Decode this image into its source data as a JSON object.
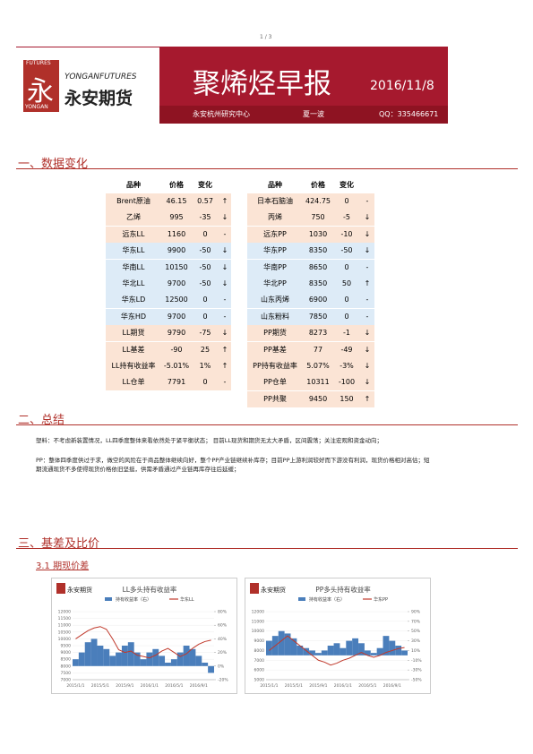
{
  "page_number": "1 / 3",
  "header": {
    "logo_small_top": "FUTURES",
    "logo_char": "永",
    "logo_en": "YONGANFUTURES",
    "logo_cn": "永安期货",
    "logo_small_bottom": "YONGAN",
    "title": "聚烯烃早报",
    "date": "2016/11/8",
    "org": "永安杭州研究中心",
    "author": "夏一波",
    "contact": "QQ：335466671"
  },
  "sections": [
    "一、数据变化",
    "二、总结",
    "三、基差及比价"
  ],
  "subsection": "3.1 期现价差",
  "table": {
    "header": [
      "品种",
      "价格",
      "变化"
    ],
    "left": [
      [
        "Brent原油",
        "46.15",
        "0.57",
        "↑"
      ],
      [
        "乙烯",
        "995",
        "-35",
        "↓"
      ],
      [
        "远东LL",
        "1160",
        "0",
        "-"
      ],
      [
        "华东LL",
        "9900",
        "-50",
        "↓"
      ],
      [
        "华南LL",
        "10150",
        "-50",
        "↓"
      ],
      [
        "华北LL",
        "9700",
        "-50",
        "↓"
      ],
      [
        "华东LD",
        "12500",
        "0",
        "-"
      ],
      [
        "华东HD",
        "9700",
        "0",
        "-"
      ],
      [
        "LL期货",
        "9790",
        "-75",
        "↓"
      ],
      [
        "LL基差",
        "-90",
        "25",
        "↑"
      ],
      [
        "LL持有收益率",
        "-5.01%",
        "1%",
        "↑"
      ],
      [
        "LL仓单",
        "7791",
        "0",
        "-"
      ]
    ],
    "right": [
      [
        "日本石脑油",
        "424.75",
        "0",
        "-"
      ],
      [
        "丙烯",
        "750",
        "-5",
        "↓"
      ],
      [
        "远东PP",
        "1030",
        "-10",
        "↓"
      ],
      [
        "华东PP",
        "8350",
        "-50",
        "↓"
      ],
      [
        "华南PP",
        "8650",
        "0",
        "-"
      ],
      [
        "华北PP",
        "8350",
        "50",
        "↑"
      ],
      [
        "山东丙烯",
        "6900",
        "0",
        "-"
      ],
      [
        "山东粉料",
        "7850",
        "0",
        "-"
      ],
      [
        "PP期货",
        "8273",
        "-1",
        "↓"
      ],
      [
        "PP基差",
        "77",
        "-49",
        "↓"
      ],
      [
        "PP持有收益率",
        "5.07%",
        "-3%",
        "↓"
      ],
      [
        "PP仓单",
        "10311",
        "-100",
        "↓"
      ],
      [
        "PP共聚",
        "9450",
        "150",
        "↑"
      ]
    ]
  },
  "summary": [
    "塑料：不考虑新装置情况，LL四季度整体来看依然处于紧平衡状态；      目前LL现货和期货无太大矛盾，区间震荡；关注宏观和资金动向；",
    "PP：整体四季度供过于求，做空的风险在于商品整体继续向好，整个PP产业链继续补库存；目前PP上游利润较好而下游没有利润，现货价格相对高估；短期流通现货不多使得现货价格依旧坚挺，供需矛盾通过产业链再库存往后延缓；"
  ],
  "charts": [
    {
      "type": "bar-line",
      "title": "LL多头持有收益率",
      "categories": [
        "2015/1/1",
        null,
        null,
        null,
        "2015/5/1",
        null,
        null,
        null,
        "2015/9/1",
        null,
        null,
        null,
        "2016/1/1",
        null,
        null,
        null,
        "2016/5/1",
        null,
        null,
        null,
        "2016/9/1",
        null,
        null
      ],
      "series": [
        {
          "name": "持有收益率（右）",
          "color": "#4a7ebb",
          "axis": "y2",
          "values": [
            10,
            20,
            35,
            40,
            30,
            25,
            15,
            20,
            30,
            35,
            20,
            10,
            20,
            25,
            15,
            5,
            10,
            20,
            30,
            25,
            15,
            5,
            -10
          ]
        },
        {
          "name": "华东LL",
          "color": "#c0392b",
          "values": [
            10000,
            10300,
            10600,
            10800,
            10900,
            10700,
            10000,
            9200,
            9000,
            9100,
            8800,
            8700,
            8600,
            8800,
            9100,
            9300,
            9000,
            8700,
            8900,
            9300,
            9600,
            9800,
            9900
          ]
        }
      ],
      "ylim": [
        7000,
        12000
      ],
      "yticks": [
        7000,
        7500,
        8000,
        8500,
        9000,
        9500,
        10000,
        10500,
        11000,
        11500,
        12000
      ],
      "y2lim": [
        -20,
        80
      ],
      "y2ticks": [
        {
          "value": -20,
          "label": "-20%"
        },
        {
          "value": 0,
          "label": "0%"
        },
        {
          "value": 20,
          "label": "20%"
        },
        {
          "value": 40,
          "label": "40%"
        },
        {
          "value": 60,
          "label": "60%"
        },
        {
          "value": 80,
          "label": "80%"
        }
      ]
    },
    {
      "type": "bar-line",
      "title": "PP多头持有收益率",
      "categories": [
        "2015/1/1",
        null,
        null,
        null,
        "2015/5/1",
        null,
        null,
        null,
        "2015/9/1",
        null,
        null,
        null,
        "2016/1/1",
        null,
        null,
        null,
        "2016/5/1",
        null,
        null,
        null,
        "2016/9/1",
        null,
        null
      ],
      "series": [
        {
          "name": "持有收益率（右）",
          "color": "#4a7ebb",
          "axis": "y2",
          "values": [
            30,
            40,
            50,
            45,
            35,
            20,
            15,
            10,
            5,
            10,
            20,
            25,
            15,
            30,
            35,
            25,
            10,
            5,
            15,
            40,
            30,
            20,
            10
          ]
        },
        {
          "name": "华东PP",
          "color": "#c0392b",
          "values": [
            8000,
            8500,
            9000,
            9500,
            9000,
            8500,
            8000,
            7500,
            7000,
            6800,
            6500,
            6700,
            7000,
            7200,
            7500,
            7800,
            7500,
            7300,
            7500,
            7800,
            8000,
            8200,
            8300
          ]
        }
      ],
      "ylim": [
        5000,
        12000
      ],
      "yticks": [
        5000,
        6000,
        7000,
        8000,
        9000,
        10000,
        11000,
        12000
      ],
      "y2lim": [
        -50,
        90
      ],
      "y2ticks": [
        {
          "value": -50,
          "label": "-50%"
        },
        {
          "value": -30,
          "label": "-30%"
        },
        {
          "value": -10,
          "label": "-10%"
        },
        {
          "value": 10,
          "label": "10%"
        },
        {
          "value": 30,
          "label": "30%"
        },
        {
          "value": 50,
          "label": "50%"
        },
        {
          "value": 70,
          "label": "70%"
        },
        {
          "value": 90,
          "label": "90%"
        }
      ]
    }
  ]
}
